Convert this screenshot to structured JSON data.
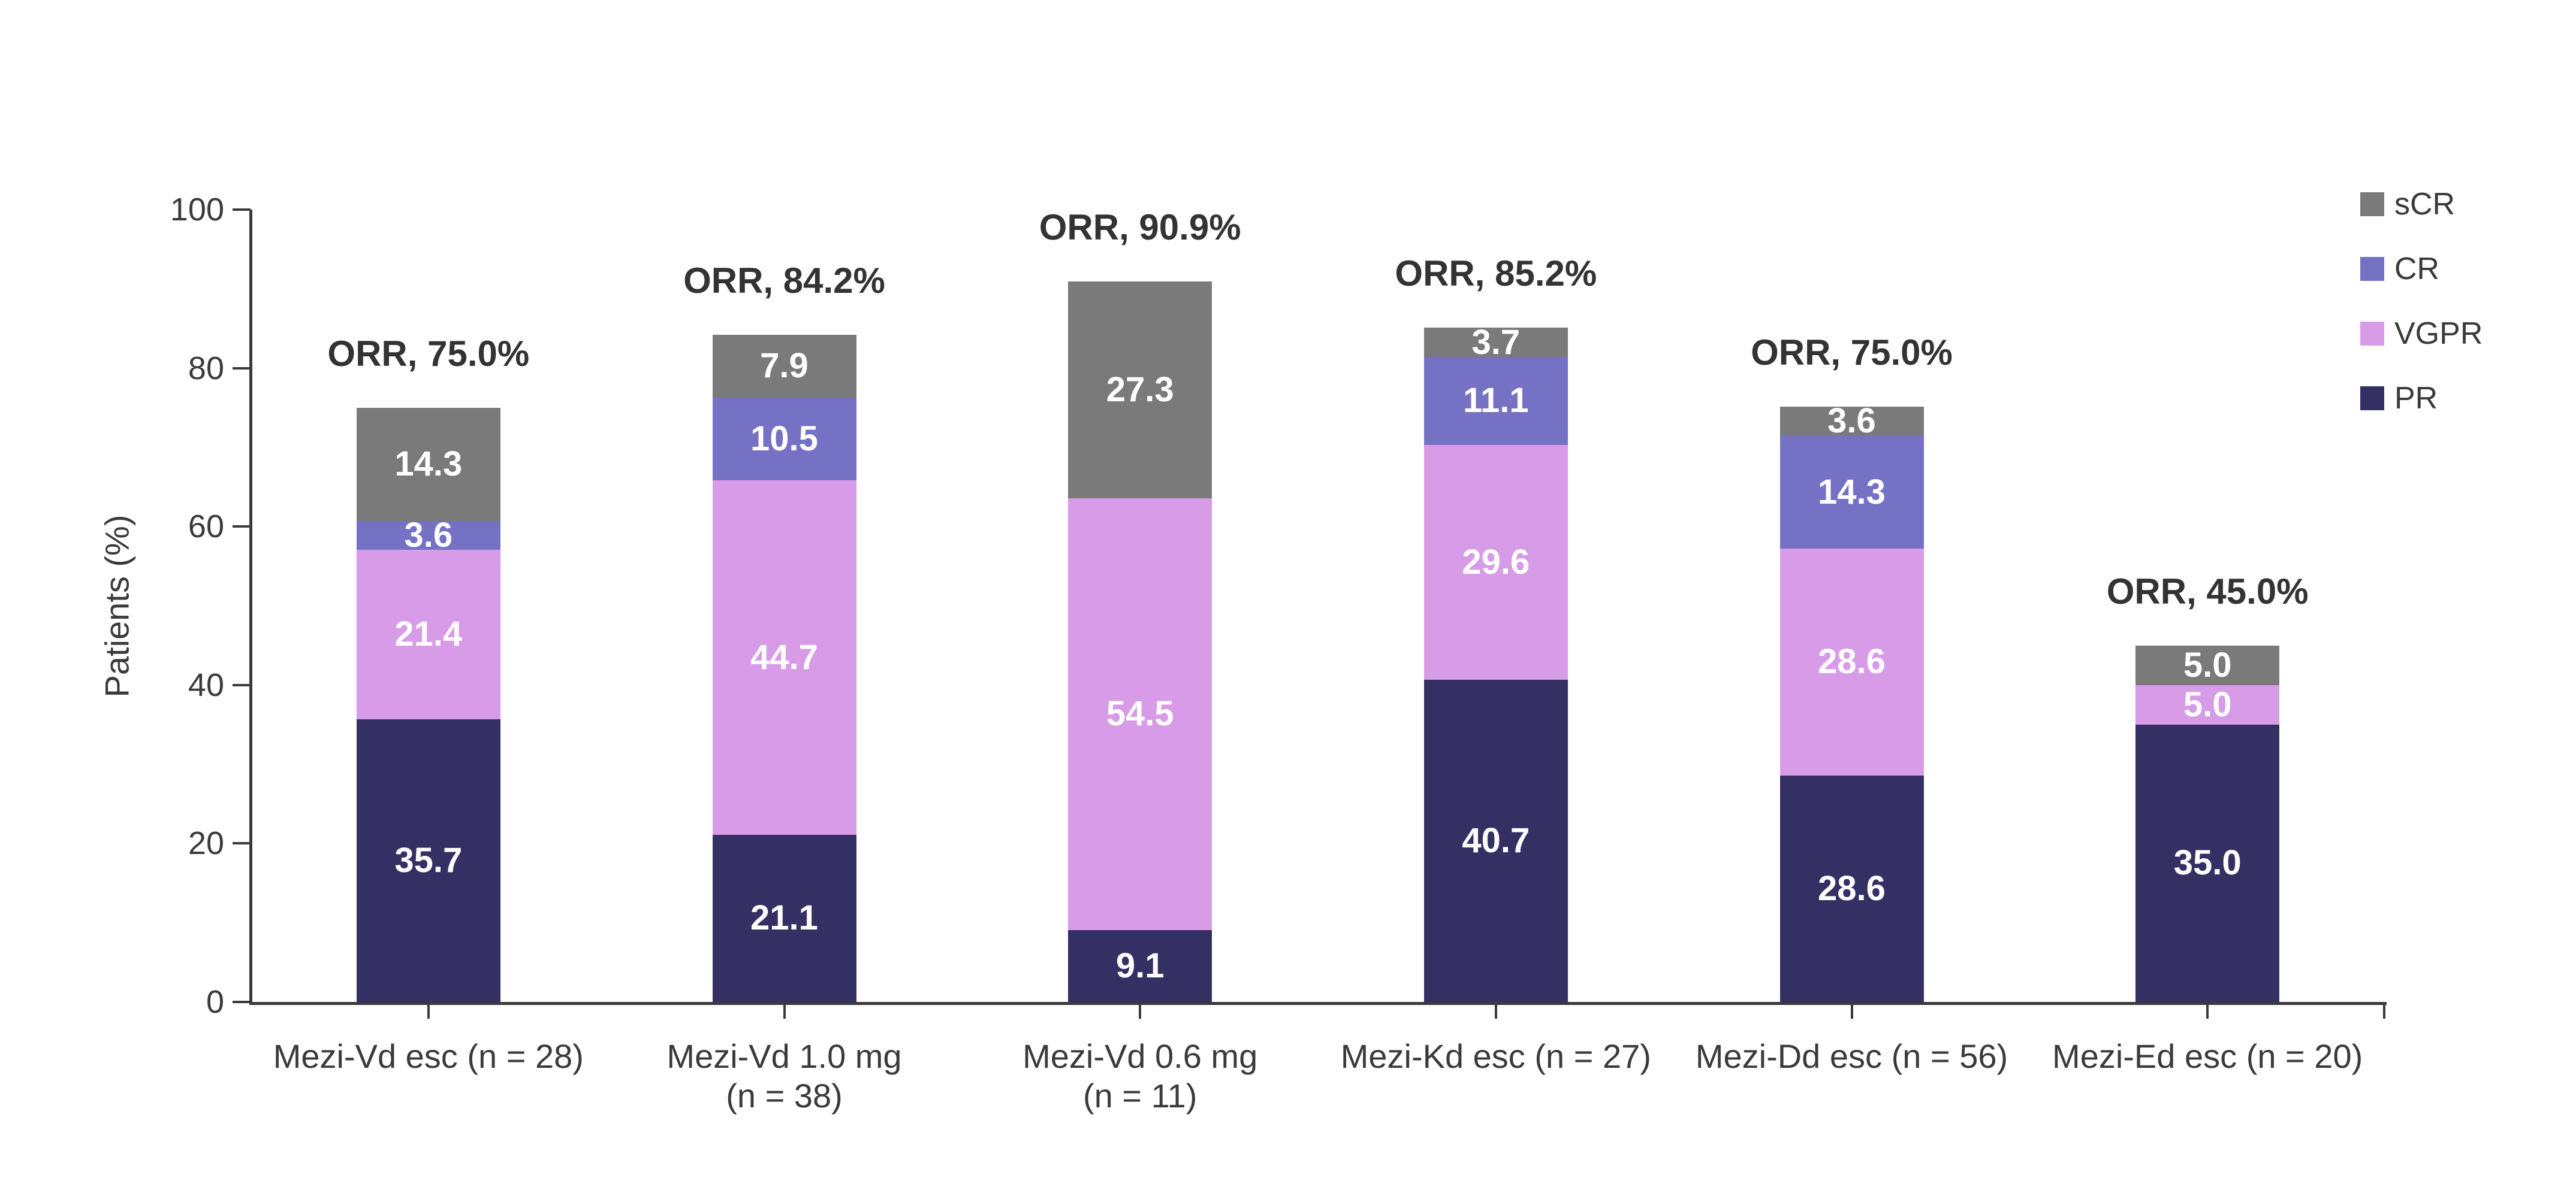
{
  "chart_data": {
    "type": "bar",
    "stacked": true,
    "title": "",
    "xlabel": "",
    "ylabel": "Patients (%)",
    "ylim": [
      0,
      100
    ],
    "yticks": [
      0,
      20,
      40,
      60,
      80,
      100
    ],
    "grid": false,
    "legend_position": "top-right",
    "legend_order": [
      "sCR",
      "CR",
      "VGPR",
      "PR"
    ],
    "categories": [
      "Mezi-Vd esc (n = 28)",
      "Mezi-Vd 1.0 mg\n(n = 38)",
      "Mezi-Vd 0.6 mg\n(n = 11)",
      "Mezi-Kd esc (n = 27)",
      "Mezi-Dd esc (n = 56)",
      "Mezi-Ed esc (n = 20)"
    ],
    "series": [
      {
        "name": "PR",
        "color": "#353064",
        "values": [
          35.7,
          21.1,
          9.1,
          40.7,
          28.6,
          35.0
        ]
      },
      {
        "name": "VGPR",
        "color": "#d79be8",
        "values": [
          21.4,
          44.7,
          54.5,
          29.6,
          28.6,
          5.0
        ]
      },
      {
        "name": "CR",
        "color": "#7571c4",
        "values": [
          3.6,
          10.5,
          0,
          11.1,
          14.3,
          0
        ]
      },
      {
        "name": "sCR",
        "color": "#7a7a7a",
        "values": [
          14.3,
          7.9,
          27.3,
          3.7,
          3.6,
          5.0
        ]
      }
    ],
    "bar_annotations": [
      "ORR, 75.0%",
      "ORR, 84.2%",
      "ORR, 90.9%",
      "ORR, 85.2%",
      "ORR, 75.0%",
      "ORR, 45.0%"
    ],
    "value_label_format": "one_decimal_hidden_when_zero"
  },
  "colors": {
    "axis": "#3a3a3a",
    "tick_label": "#3a3a3a",
    "annotation": "#333333",
    "segment_label": "#ffffff",
    "background": "#ffffff"
  }
}
